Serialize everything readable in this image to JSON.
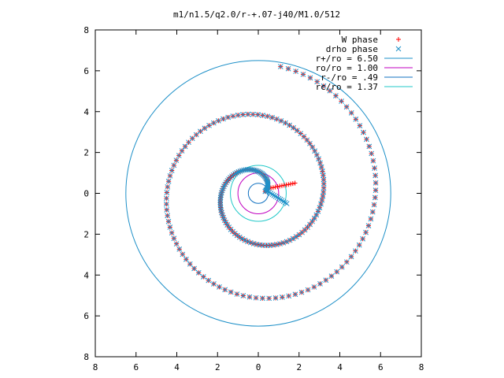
{
  "chart_data": {
    "type": "scatter",
    "title": "m1/n1.5/q2.0/r-+.07-j40/M1.0/512",
    "xlabel": "",
    "ylabel": "",
    "xlim": [
      -8,
      8
    ],
    "ylim": [
      -8,
      8
    ],
    "x_tick_values": [
      -8,
      -6,
      -4,
      -2,
      0,
      2,
      4,
      6,
      8
    ],
    "x_tick_labels": [
      "8",
      "6",
      "4",
      "2",
      "0",
      "2",
      "4",
      "6",
      "8"
    ],
    "y_tick_values": [
      8,
      6,
      4,
      2,
      0,
      -2,
      -4,
      -6,
      -8
    ],
    "y_tick_labels": [
      "8",
      "6",
      "4",
      "2",
      "0",
      "2",
      "4",
      "6",
      "8"
    ],
    "grid": false,
    "legend_position": "top-right",
    "series": [
      {
        "name": "W phase",
        "marker": "+",
        "color": "#ff0000",
        "spiral": {
          "radius_start": 0.35,
          "radius_end": 6.3,
          "angle_start_deg": 15,
          "angle_end_deg": 800,
          "sense": "counterclockwise",
          "inner_hook": {
            "x": 1.8,
            "y": 0.5
          }
        }
      },
      {
        "name": "drho phase",
        "marker": "x",
        "color": "#1e90c8",
        "spiral": {
          "radius_start": 0.35,
          "radius_end": 6.3,
          "angle_start_deg": 15,
          "angle_end_deg": 800,
          "sense": "counterclockwise",
          "inner_hook": {
            "x": 1.4,
            "y": -0.5
          }
        }
      },
      {
        "name": "r+/ro = 6.50",
        "type": "circle",
        "radius": 6.5,
        "color": "#1e90c8"
      },
      {
        "name": "ro/ro = 1.00",
        "type": "circle",
        "radius": 1.0,
        "color": "#c000c0"
      },
      {
        "name": "r-/ro = .49",
        "type": "circle",
        "radius": 0.49,
        "color": "#1070c0"
      },
      {
        "name": "rc/ro = 1.37",
        "type": "circle",
        "radius": 1.37,
        "color": "#20c8c8"
      }
    ]
  }
}
